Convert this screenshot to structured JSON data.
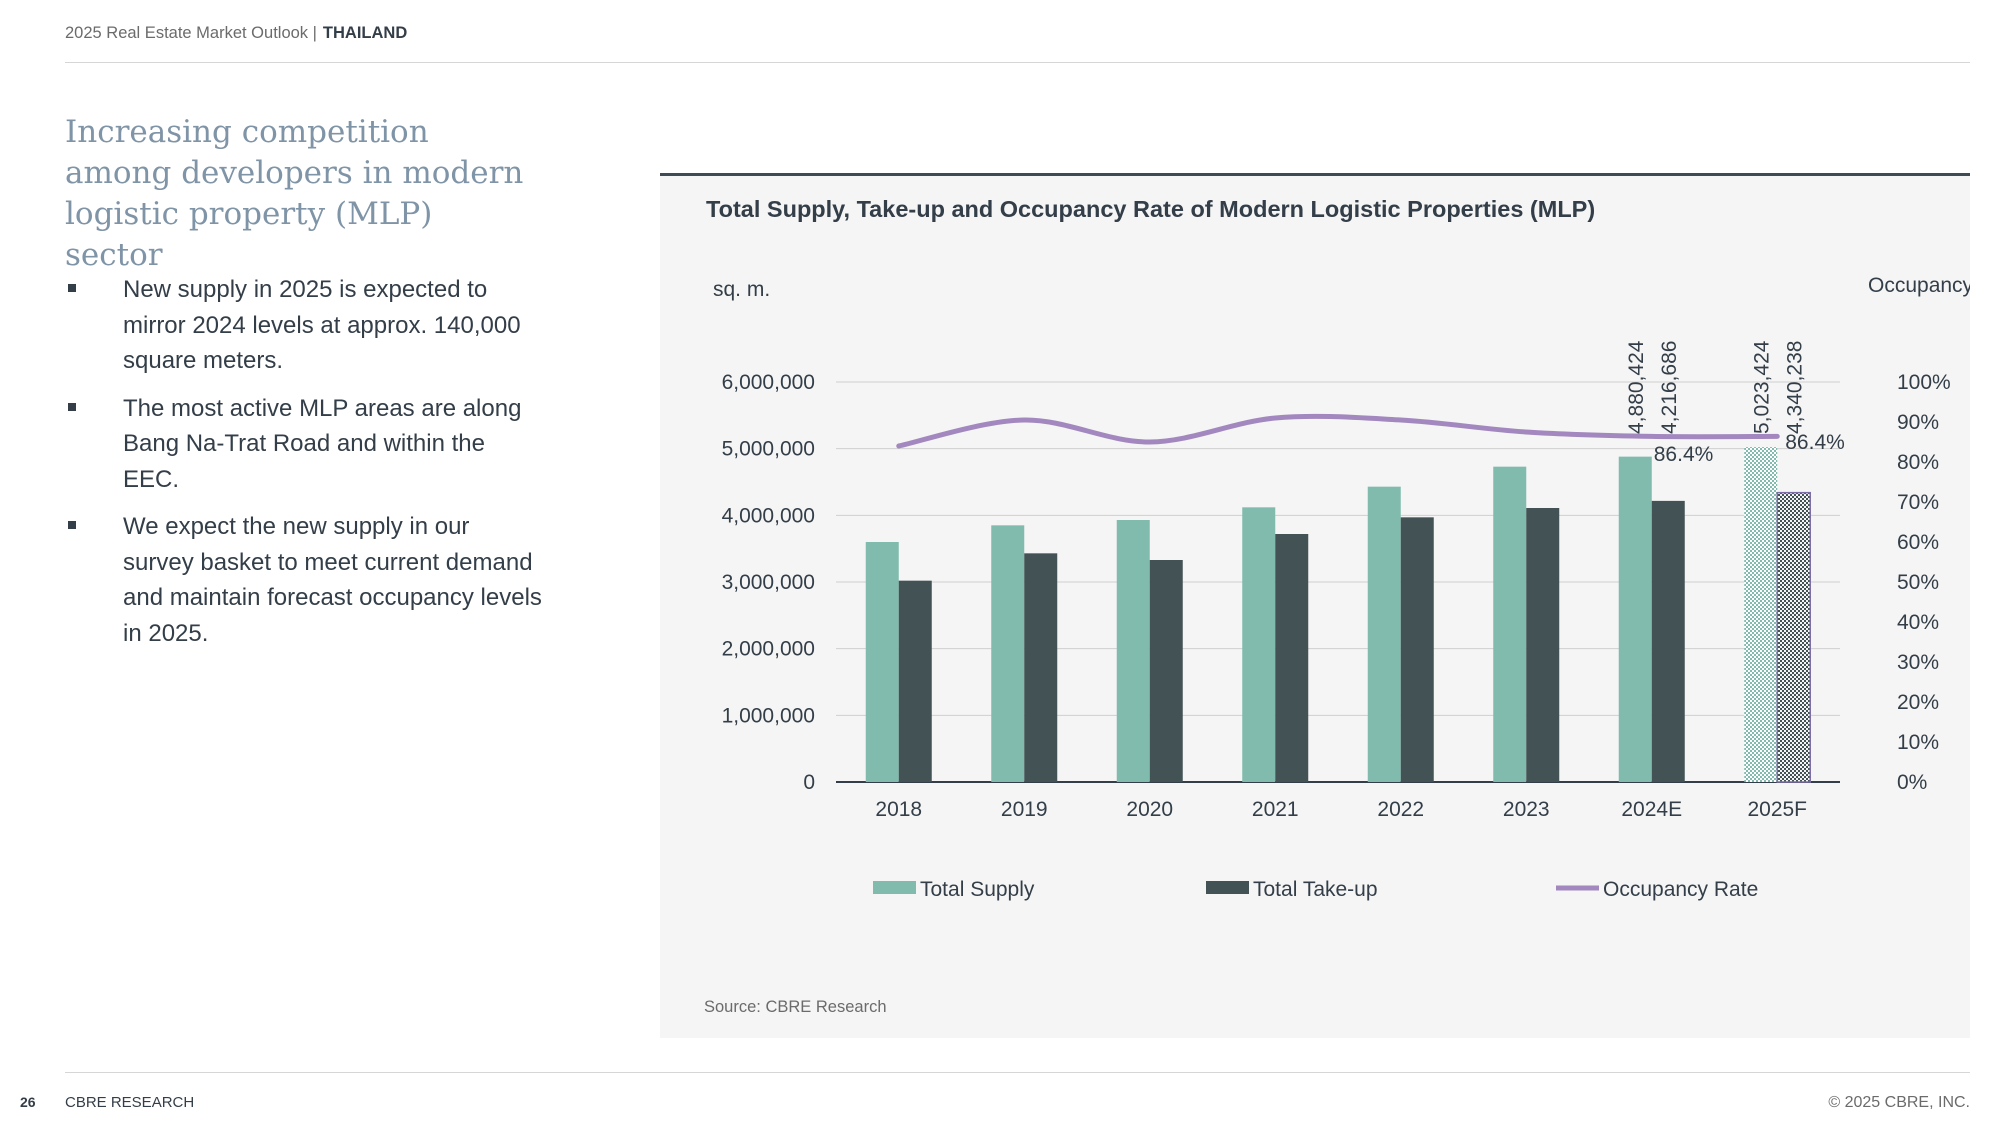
{
  "header": {
    "report": "2025 Real Estate Market Outlook |",
    "country": "THAILAND"
  },
  "title": "Increasing competition among developers in modern logistic property (MLP) sector",
  "bullets": [
    "New supply in 2025 is expected to mirror 2024 levels at approx. 140,000 square meters.",
    "The most active MLP areas are along Bang Na-Trat Road and within the EEC.",
    "We expect the new supply in our survey basket to meet current demand and maintain forecast occupancy levels in 2025."
  ],
  "chart_data": {
    "type": "bar",
    "title": "Total Supply, Take-up and Occupancy Rate of Modern Logistic Properties (MLP)",
    "ylabel": "sq. m.",
    "y2label": "Occupancy Rate",
    "categories": [
      "2018",
      "2019",
      "2020",
      "2021",
      "2022",
      "2023",
      "2024E",
      "2025F"
    ],
    "ylim": [
      0,
      6000000
    ],
    "yticks": [
      "0",
      "1,000,000",
      "2,000,000",
      "3,000,000",
      "4,000,000",
      "5,000,000",
      "6,000,000"
    ],
    "y2lim": [
      0,
      100
    ],
    "y2ticks": [
      "0%",
      "10%",
      "20%",
      "30%",
      "40%",
      "50%",
      "60%",
      "70%",
      "80%",
      "90%",
      "100%"
    ],
    "series": [
      {
        "name": "Total Supply",
        "type": "bar",
        "color": "#80bbad",
        "values": [
          3600000,
          3850000,
          3930000,
          4120000,
          4430000,
          4730000,
          4880424,
          5023424
        ]
      },
      {
        "name": "Total Take-up",
        "type": "bar",
        "color": "#435254",
        "values": [
          3020000,
          3430000,
          3330000,
          3720000,
          3970000,
          4110000,
          4216686,
          4340238
        ]
      },
      {
        "name": "Occupancy Rate",
        "type": "line",
        "axis": "right",
        "color": "#a388bf",
        "values": [
          84,
          90.5,
          85,
          91,
          90.5,
          87.5,
          86.4,
          86.4
        ]
      }
    ],
    "data_labels": {
      "supply_2024E": "4,880,424",
      "takeup_2024E": "4,216,686",
      "supply_2025F": "5,023,424",
      "takeup_2025F": "4,340,238",
      "occ_2024E": "86.4%",
      "occ_2025F": "86.4%"
    },
    "legend": [
      "Total Supply",
      "Total Take-up",
      "Occupancy Rate"
    ],
    "legend_position": "bottom",
    "grid": true,
    "source": "Source: CBRE Research"
  },
  "footer": {
    "page_number": "26",
    "brand": "CBRE RESEARCH",
    "copyright": "© 2025 CBRE, INC."
  }
}
